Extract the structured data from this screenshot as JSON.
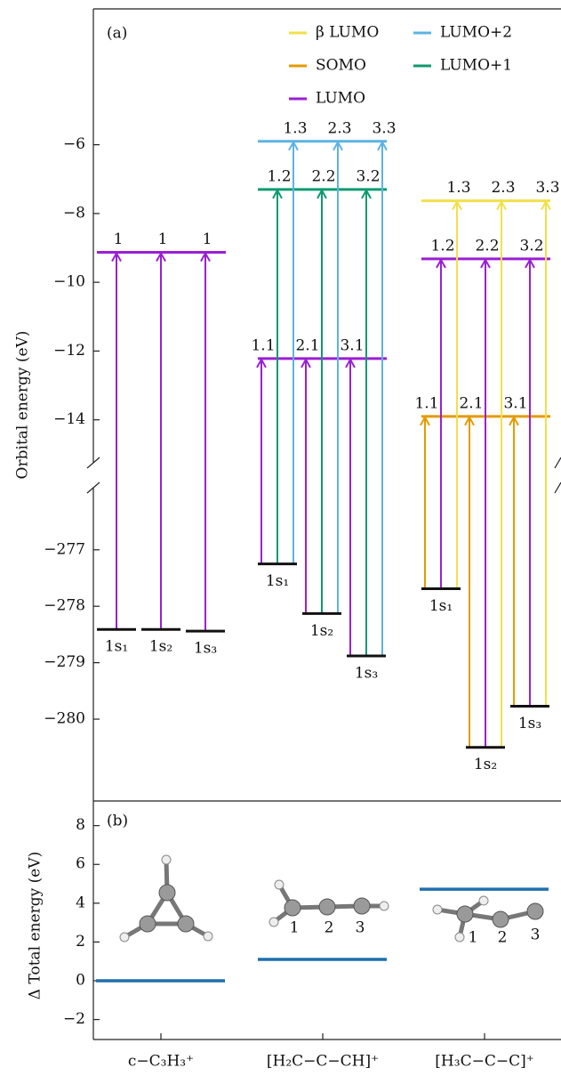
{
  "chart_data": [
    {
      "type": "energy-levels",
      "panel_label": "(a)",
      "ylabel": "Orbital energy (eV)",
      "ylim_upper": [
        -15.25,
        -2.05
      ],
      "ylim_lower": [
        -281.45,
        -275.9
      ],
      "yticks_upper": [
        {
          "value": -14,
          "label": "−14"
        },
        {
          "value": -12,
          "label": "−12"
        },
        {
          "value": -10,
          "label": "−10"
        },
        {
          "value": -8,
          "label": "−8"
        },
        {
          "value": -6,
          "label": "−6"
        }
      ],
      "yticks_lower": [
        {
          "value": -280,
          "label": "−280"
        },
        {
          "value": -279,
          "label": "−279"
        },
        {
          "value": -278,
          "label": "−278"
        },
        {
          "value": -277,
          "label": "−277"
        }
      ],
      "series": [
        {
          "name": "β LUMO",
          "color": "#f2e04a"
        },
        {
          "name": "SOMO",
          "color": "#e39b00"
        },
        {
          "name": "LUMO",
          "color": "#9a1fd4"
        },
        {
          "name": "LUMO+2",
          "color": "#5cb3e4"
        },
        {
          "name": "LUMO+1",
          "color": "#0c9a70"
        }
      ],
      "molecules": [
        {
          "core_levels": [
            {
              "label": "1s₁",
              "value": -278.41
            },
            {
              "label": "1s₂",
              "value": -278.41
            },
            {
              "label": "1s₃",
              "value": -278.44
            }
          ],
          "orbitals": [
            {
              "name": "LUMO",
              "value": -9.13,
              "labels": [
                "1",
                "1",
                "1"
              ]
            }
          ]
        },
        {
          "core_levels": [
            {
              "label": "1s₁",
              "value": -277.25
            },
            {
              "label": "1s₂",
              "value": -278.13
            },
            {
              "label": "1s₃",
              "value": -278.88
            }
          ],
          "orbitals": [
            {
              "name": "LUMO",
              "value": -12.22,
              "labels": [
                "1.1",
                "2.1",
                "3.1"
              ]
            },
            {
              "name": "LUMO+1",
              "value": -7.3,
              "labels": [
                "1.2",
                "2.2",
                "3.2"
              ]
            },
            {
              "name": "LUMO+2",
              "value": -5.9,
              "labels": [
                "1.3",
                "2.3",
                "3.3"
              ]
            }
          ]
        },
        {
          "core_levels": [
            {
              "label": "1s₁",
              "value": -277.69
            },
            {
              "label": "1s₂",
              "value": -280.5
            },
            {
              "label": "1s₃",
              "value": -279.77
            }
          ],
          "orbitals": [
            {
              "name": "SOMO",
              "value": -13.9,
              "labels": [
                "1.1",
                "2.1",
                "3.1"
              ]
            },
            {
              "name": "LUMO",
              "value": -9.32,
              "labels": [
                "1.2",
                "2.2",
                "3.2"
              ]
            },
            {
              "name": "β LUMO",
              "value": -7.63,
              "labels": [
                "1.3",
                "2.3",
                "3.3"
              ]
            }
          ]
        }
      ]
    },
    {
      "type": "level",
      "panel_label": "(b)",
      "ylabel": "Δ Total energy (eV)",
      "categories": [
        "c−C₃H₃⁺",
        "[H₂C−C−CH]⁺",
        "[H₃C−C−C]⁺"
      ],
      "values": [
        0,
        1.1,
        4.72
      ],
      "color": "#1f6fad",
      "ylim": [
        -3.03,
        9.27
      ],
      "yticks": [
        {
          "value": -2,
          "label": "−2"
        },
        0,
        2,
        4,
        6,
        8
      ],
      "atom_labels": [
        [],
        [
          "1",
          "2",
          "3"
        ],
        [
          "1",
          "2",
          "3"
        ]
      ]
    }
  ]
}
